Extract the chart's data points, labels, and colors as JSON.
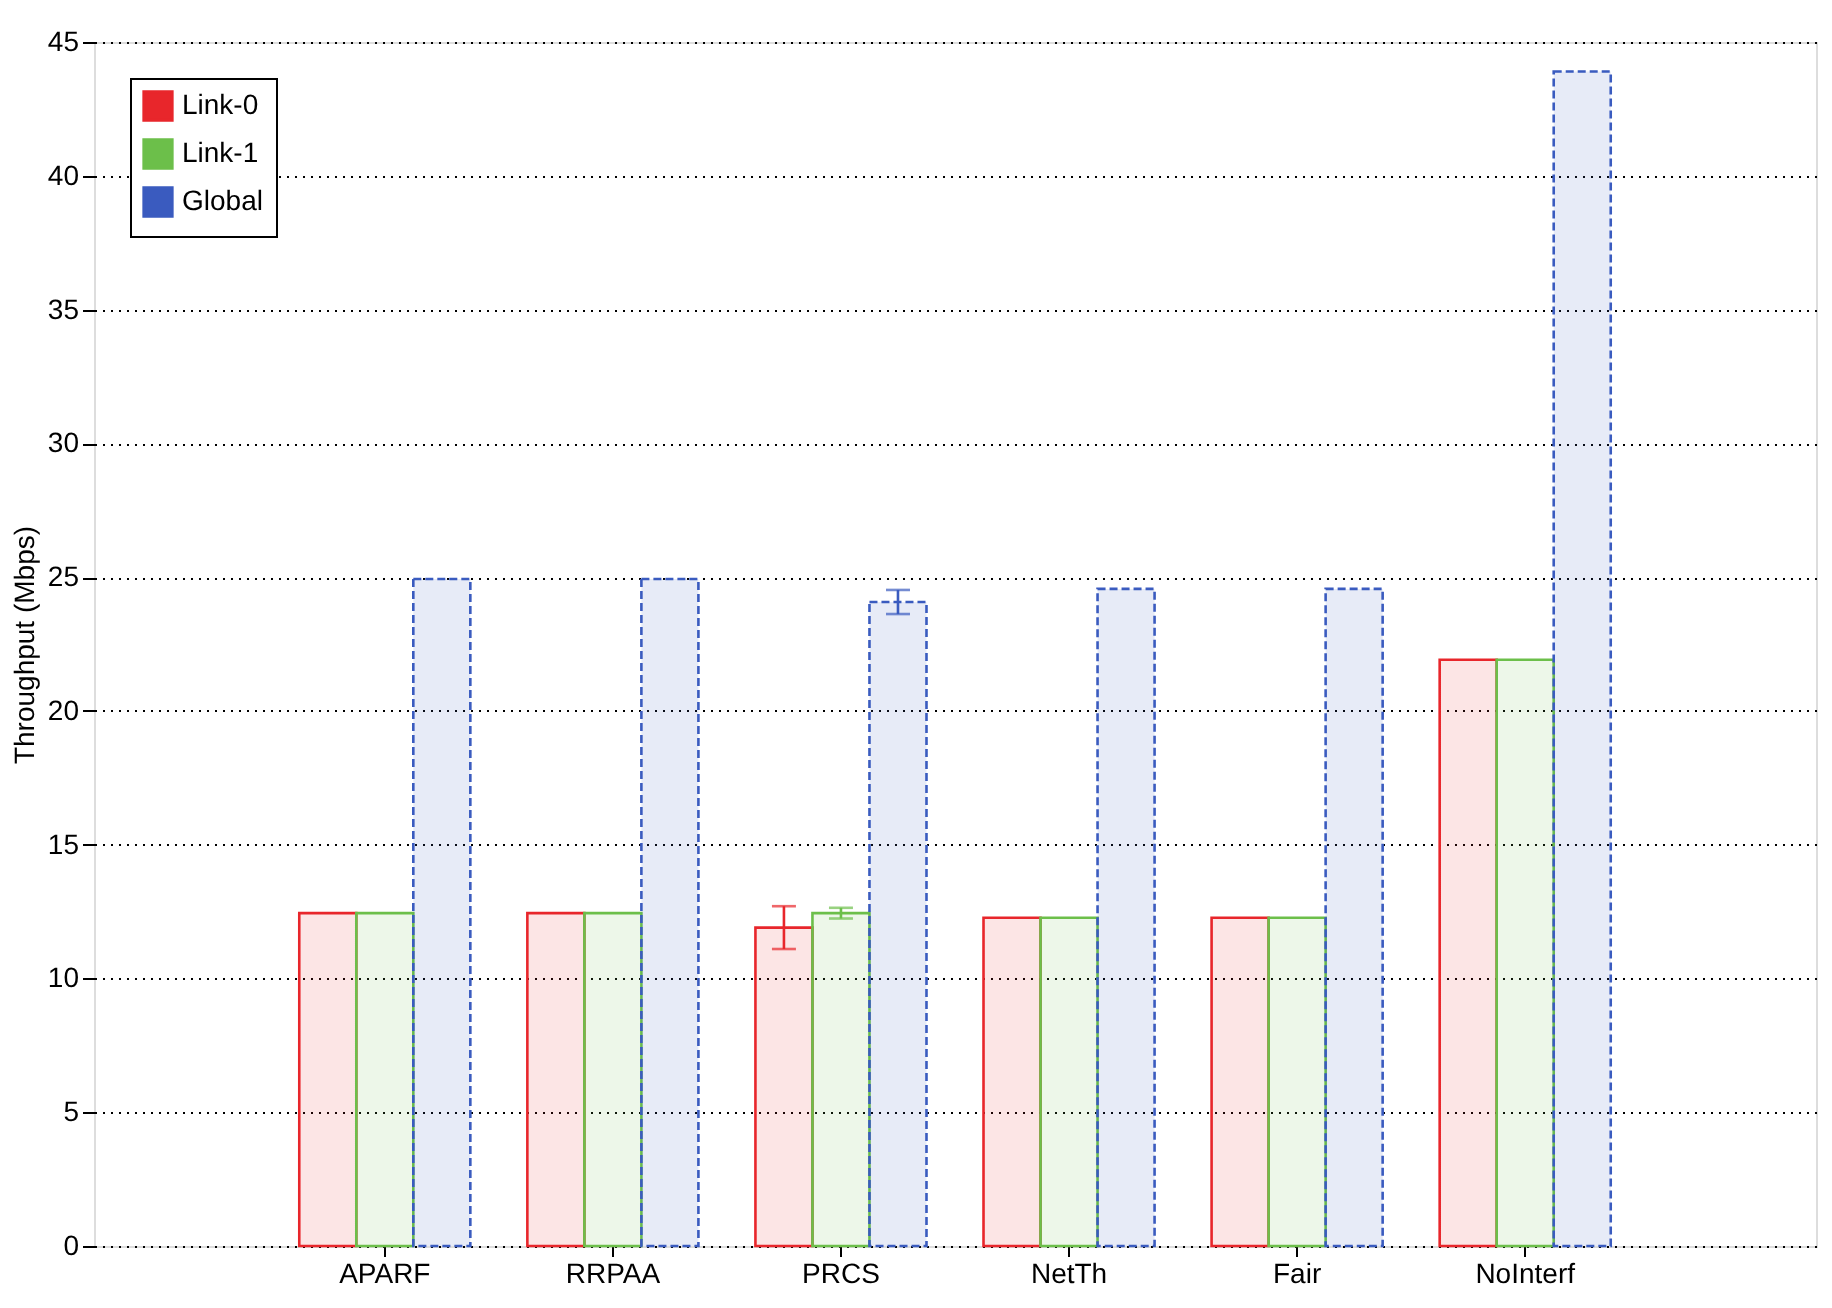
{
  "chart_data": {
    "type": "bar",
    "ylabel": "Throughput (Mbps)",
    "categories": [
      "APARF",
      "RRPAA",
      "PRCS",
      "NetTh",
      "Fair",
      "NoInterf"
    ],
    "series": [
      {
        "name": "Link-0",
        "color": "#e8262b",
        "values": [
          12.44,
          12.44,
          11.9,
          12.27,
          12.27,
          21.91
        ],
        "errors": [
          null,
          null,
          0.8,
          null,
          null,
          null
        ]
      },
      {
        "name": "Link-1",
        "color": "#6cbf4a",
        "values": [
          12.44,
          12.44,
          12.44,
          12.27,
          12.27,
          21.91
        ],
        "errors": [
          null,
          null,
          0.2,
          null,
          null,
          null
        ]
      },
      {
        "name": "Global",
        "color": "#3a5bbf",
        "values": [
          24.93,
          24.93,
          24.07,
          24.56,
          24.56,
          43.9
        ],
        "errors": [
          null,
          null,
          0.45,
          null,
          null,
          null
        ],
        "line_style": "dashed"
      }
    ],
    "ylim": [
      0,
      45
    ],
    "yticks": [
      0,
      5,
      10,
      15,
      20,
      25,
      30,
      35,
      40,
      45
    ],
    "grid": "y",
    "legend": "top left"
  }
}
